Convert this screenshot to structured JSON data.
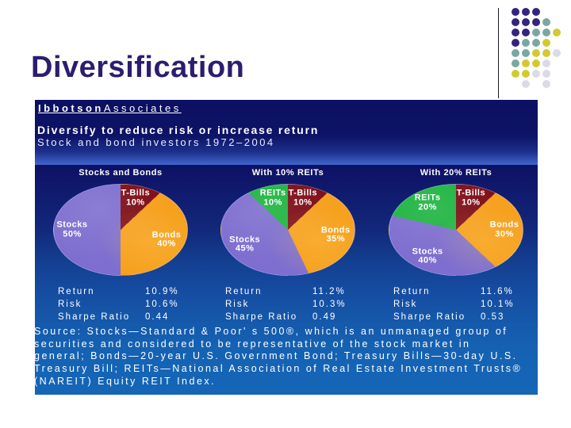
{
  "slide": {
    "title": "Diversification"
  },
  "decoration": {
    "rows": [
      "PPP..",
      "PPPT.",
      "PPTTY",
      "PTTY.",
      "TTYYL",
      "TYYL.",
      "YYLL.",
      ".L.L."
    ],
    "palette": {
      "P": "#35247d",
      "T": "#7ba7a3",
      "Y": "#d4c92f",
      "L": "#dadae9"
    }
  },
  "chart": {
    "brand_bold": "Ibbotson",
    "brand_rest": "Associates",
    "heading": "Diversify to reduce risk or increase return",
    "subheading": "Stock and bond investors 1972–2004",
    "source": {
      "lines": [
        "Source: Stocks—Standard & Poor' s 500®, which is an unmanaged group of",
        "securities and considered to be representative of the stock market in",
        "general; Bonds—20-year U.S. Government Bond; Treasury Bills—30-day U.S.",
        "Treasury Bill; REITs—National Association of Real Estate Investment Trusts®",
        "(NAREIT) Equity REIT Index."
      ]
    }
  },
  "chart_data": [
    {
      "type": "pie",
      "title": "Stocks and Bonds",
      "labels": [
        "T-Bills",
        "Bonds",
        "Stocks"
      ],
      "values": [
        10,
        40,
        50
      ],
      "colors": [
        "#7e0e18",
        "#f6a01e",
        "#7e6ecf"
      ],
      "stats": [
        [
          "Return",
          "10.9%"
        ],
        [
          "Risk",
          "10.6%"
        ],
        [
          "Sharpe Ratio",
          "0.44"
        ]
      ]
    },
    {
      "type": "pie",
      "title": "With 10% REITs",
      "labels": [
        "T-Bills",
        "Bonds",
        "Stocks",
        "REITs"
      ],
      "values": [
        10,
        35,
        45,
        10
      ],
      "colors": [
        "#7e0e18",
        "#f6a01e",
        "#7e6ecf",
        "#1db440"
      ],
      "stats": [
        [
          "Return",
          "11.2%"
        ],
        [
          "Risk",
          "10.3%"
        ],
        [
          "Sharpe Ratio",
          "0.49"
        ]
      ]
    },
    {
      "type": "pie",
      "title": "With 20% REITs",
      "labels": [
        "T-Bills",
        "Bonds",
        "Stocks",
        "REITs"
      ],
      "values": [
        10,
        30,
        40,
        20
      ],
      "colors": [
        "#7e0e18",
        "#f6a01e",
        "#7e6ecf",
        "#1db440"
      ],
      "stats": [
        [
          "Return",
          "11.6%"
        ],
        [
          "Risk",
          "10.1%"
        ],
        [
          "Sharpe Ratio",
          "0.53"
        ]
      ]
    }
  ]
}
